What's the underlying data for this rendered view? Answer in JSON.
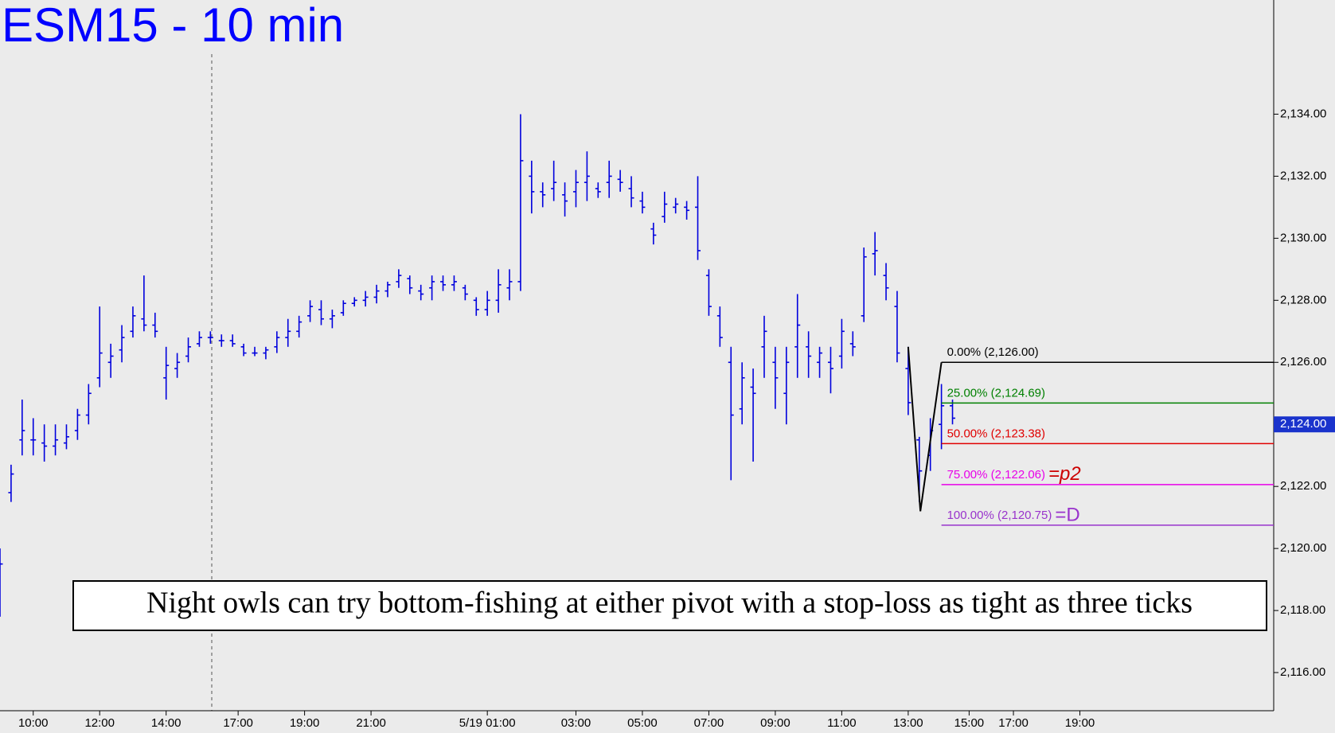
{
  "chart_data": {
    "type": "ohlc",
    "title": "ESM15 - 10 min",
    "color": "#0000dd",
    "xlim": [
      0,
      230
    ],
    "ylim": [
      2114.77,
      2137.68
    ],
    "xticks": [
      {
        "value": 6,
        "label": "10:00"
      },
      {
        "value": 18,
        "label": "12:00"
      },
      {
        "value": 30,
        "label": "14:00"
      },
      {
        "value": 43,
        "label": "17:00"
      },
      {
        "value": 55,
        "label": "19:00"
      },
      {
        "value": 67,
        "label": "21:00"
      },
      {
        "value": 88,
        "label": "5/19 01:00"
      },
      {
        "value": 104,
        "label": "03:00"
      },
      {
        "value": 116,
        "label": "05:00"
      },
      {
        "value": 128,
        "label": "07:00"
      },
      {
        "value": 140,
        "label": "09:00"
      },
      {
        "value": 152,
        "label": "11:00"
      },
      {
        "value": 164,
        "label": "13:00"
      },
      {
        "value": 175,
        "label": "15:00"
      },
      {
        "value": 183,
        "label": "17:00"
      },
      {
        "value": 195,
        "label": "19:00"
      }
    ],
    "yticks": [
      {
        "value": 2116,
        "label": "2,116.00"
      },
      {
        "value": 2118,
        "label": "2,118.00"
      },
      {
        "value": 2120,
        "label": "2,120.00"
      },
      {
        "value": 2122,
        "label": "2,122.00"
      },
      {
        "value": 2124,
        "label": "2,124.00"
      },
      {
        "value": 2126,
        "label": "2,126.00"
      },
      {
        "value": 2128,
        "label": "2,128.00"
      },
      {
        "value": 2130,
        "label": "2,130.00"
      },
      {
        "value": 2132,
        "label": "2,132.00"
      },
      {
        "value": 2134,
        "label": "2,134.00"
      }
    ],
    "last_price": {
      "value": 2124,
      "label": "2,124.00"
    },
    "x": [
      0,
      2,
      4,
      6,
      8,
      10,
      12,
      14,
      16,
      18,
      20,
      22,
      24,
      26,
      28,
      30,
      32,
      34,
      36,
      38,
      40,
      42,
      44,
      46,
      48,
      50,
      52,
      54,
      56,
      58,
      60,
      62,
      64,
      66,
      68,
      70,
      72,
      74,
      76,
      78,
      80,
      82,
      84,
      86,
      88,
      90,
      92,
      94,
      96,
      98,
      100,
      102,
      104,
      106,
      108,
      110,
      112,
      114,
      116,
      118,
      120,
      122,
      124,
      126,
      128,
      130,
      132,
      134,
      136,
      138,
      140,
      142,
      144,
      146,
      148,
      150,
      152,
      154,
      156,
      158,
      160,
      162,
      164,
      166,
      168,
      170,
      172
    ],
    "open": [
      2118.5,
      2121.8,
      2123.5,
      2123.5,
      2123.4,
      2123.3,
      2123.4,
      2123.8,
      2124.3,
      2125.5,
      2126,
      2126.4,
      2127,
      2127.4,
      2127.2,
      2125.5,
      2125.8,
      2126.2,
      2126.6,
      2126.8,
      2126.7,
      2126.7,
      2126.5,
      2126.3,
      2126.3,
      2126.5,
      2126.8,
      2127,
      2127.5,
      2127.7,
      2127.4,
      2127.6,
      2127.9,
      2128,
      2128.1,
      2128.3,
      2128.6,
      2128.7,
      2128.3,
      2128.4,
      2128.6,
      2128.5,
      2128.4,
      2128,
      2127.7,
      2128,
      2128.4,
      2128.6,
      2132,
      2131.5,
      2131.6,
      2131.4,
      2131.5,
      2131.8,
      2131.6,
      2131.8,
      2131.9,
      2131.6,
      2131.2,
      2130.3,
      2130.7,
      2131,
      2131,
      2131,
      2128.8,
      2127.5,
      2126,
      2124.5,
      2125.2,
      2126.5,
      2126,
      2125,
      2126.5,
      2126.5,
      2126,
      2126,
      2126.2,
      2126.6,
      2127.5,
      2129.5,
      2128.8,
      2127.8,
      2125.8,
      2123.5,
      2123,
      2124,
      2124.6
    ],
    "high": [
      2120,
      2122.7,
      2124.8,
      2124.2,
      2124,
      2124,
      2124,
      2124.5,
      2125.3,
      2127.8,
      2126.6,
      2127.2,
      2127.8,
      2128.8,
      2127.6,
      2126.5,
      2126.3,
      2126.8,
      2127,
      2127,
      2126.9,
      2126.9,
      2126.6,
      2126.5,
      2126.5,
      2127,
      2127.4,
      2127.5,
      2128,
      2128,
      2127.7,
      2128,
      2128.1,
      2128.3,
      2128.5,
      2128.6,
      2129,
      2128.8,
      2128.5,
      2128.8,
      2128.8,
      2128.8,
      2128.5,
      2128.1,
      2128.3,
      2129,
      2129,
      2134,
      2132.5,
      2131.8,
      2132.5,
      2131.8,
      2132.2,
      2132.8,
      2131.8,
      2132.5,
      2132.2,
      2132,
      2131.5,
      2130.5,
      2131.5,
      2131.3,
      2131.2,
      2132,
      2129,
      2127.8,
      2126.5,
      2126,
      2125.8,
      2127.5,
      2126.5,
      2126.5,
      2128.2,
      2127,
      2126.5,
      2126.5,
      2127.4,
      2127,
      2129.7,
      2130.2,
      2129.2,
      2128.3,
      2126.5,
      2123.6,
      2124.2,
      2125.3,
      2124.8
    ],
    "low": [
      2117.8,
      2121.5,
      2123,
      2123,
      2122.8,
      2123,
      2123.2,
      2123.5,
      2124,
      2125.2,
      2125.5,
      2126,
      2126.8,
      2127,
      2126.8,
      2124.8,
      2125.5,
      2126,
      2126.5,
      2126.6,
      2126.5,
      2126.5,
      2126.2,
      2126.2,
      2126.1,
      2126.3,
      2126.5,
      2126.8,
      2127.3,
      2127.2,
      2127.1,
      2127.5,
      2127.8,
      2127.8,
      2127.9,
      2128.1,
      2128.4,
      2128.2,
      2128,
      2128,
      2128.3,
      2128.3,
      2128,
      2127.5,
      2127.5,
      2127.6,
      2128,
      2128.3,
      2130.8,
      2131,
      2131.2,
      2130.7,
      2131,
      2131.2,
      2131.3,
      2131.3,
      2131.5,
      2131,
      2130.8,
      2129.8,
      2130.5,
      2130.8,
      2130.6,
      2129.3,
      2127.5,
      2126.5,
      2122.2,
      2124,
      2122.8,
      2125.5,
      2124.5,
      2124,
      2125.5,
      2125.5,
      2125.5,
      2125,
      2125.8,
      2126.2,
      2127.3,
      2128.8,
      2128,
      2126,
      2124.3,
      2121.5,
      2122.5,
      2123.2,
      2124
    ],
    "close": [
      2119.5,
      2122.4,
      2123.8,
      2123.5,
      2123.3,
      2123.5,
      2123.6,
      2124.3,
      2125,
      2126.3,
      2126.2,
      2126.8,
      2127.5,
      2127.2,
      2127,
      2125.9,
      2126,
      2126.5,
      2126.8,
      2126.8,
      2126.7,
      2126.6,
      2126.3,
      2126.3,
      2126.4,
      2126.8,
      2127,
      2127.3,
      2127.8,
      2127.4,
      2127.5,
      2127.9,
      2128,
      2128.1,
      2128.3,
      2128.5,
      2128.8,
      2128.4,
      2128.2,
      2128.6,
      2128.5,
      2128.6,
      2128.2,
      2127.7,
      2128,
      2128.5,
      2128.6,
      2132.5,
      2131.5,
      2131.4,
      2131.8,
      2131.2,
      2131.8,
      2132,
      2131.5,
      2132,
      2131.8,
      2131.3,
      2131,
      2130.1,
      2131.1,
      2131.1,
      2130.9,
      2129.6,
      2127.8,
      2126.8,
      2124.3,
      2125.5,
      2125,
      2127,
      2125.5,
      2126,
      2127.2,
      2126.2,
      2126.3,
      2125.8,
      2127,
      2126.5,
      2129.4,
      2129.6,
      2128.4,
      2126.3,
      2124.7,
      2122.5,
      2123.8,
      2124.6,
      2124.2
    ],
    "pattern": {
      "color": "#000000",
      "x": [
        164,
        166.2,
        170
      ],
      "y": [
        2126.5,
        2121.2,
        2126
      ]
    },
    "fib_x": 170,
    "fib_levels": [
      {
        "label": "0.00% (2,126.00)",
        "value": 2126,
        "color": "#000000"
      },
      {
        "label": "25.00% (2,124.69)",
        "value": 2124.69,
        "color": "#008000"
      },
      {
        "label": "50.00% (2,123.38)",
        "value": 2123.38,
        "color": "#e00000"
      },
      {
        "label": "75.00% (2,122.06)",
        "value": 2122.06,
        "color": "#e800e8",
        "suffix": "=p2",
        "suffix_color": "#cc0000"
      },
      {
        "label": "100.00% (2,120.75)",
        "value": 2120.75,
        "color": "#9933cc",
        "suffix": "=D",
        "suffix_color": "#9933cc"
      }
    ],
    "annotation": "Night owls can try bottom-fishing at either pivot with a stop-loss as tight as three ticks"
  }
}
